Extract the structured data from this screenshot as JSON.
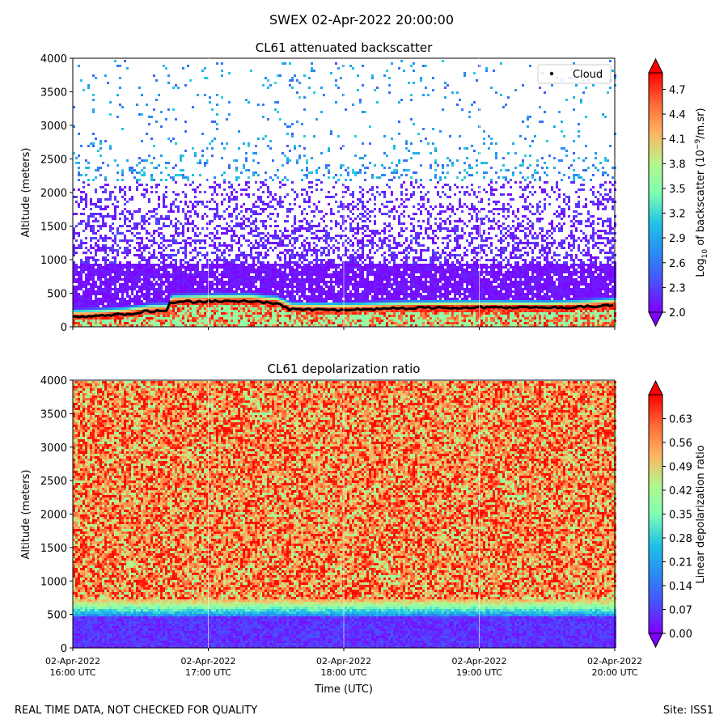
{
  "suptitle": "SWEX 02-Apr-2022 20:00:00",
  "footer": {
    "left": "REAL TIME DATA, NOT CHECKED FOR QUALITY",
    "right": "Site: ISS1"
  },
  "xaxis": {
    "label": "Time (UTC)",
    "ticks": [
      {
        "date": "02-Apr-2022",
        "time": "16:00 UTC"
      },
      {
        "date": "02-Apr-2022",
        "time": "17:00 UTC"
      },
      {
        "date": "02-Apr-2022",
        "time": "18:00 UTC"
      },
      {
        "date": "02-Apr-2022",
        "time": "19:00 UTC"
      },
      {
        "date": "02-Apr-2022",
        "time": "20:00 UTC"
      }
    ]
  },
  "chart_data": [
    {
      "type": "heatmap",
      "title": "CL61 attenuated backscatter",
      "xlabel": "",
      "ylabel": "Altitude (meters)",
      "xlim_hours": [
        16,
        20
      ],
      "ylim": [
        0,
        4000
      ],
      "yticks": [
        0,
        500,
        1000,
        1500,
        2000,
        2500,
        3000,
        3500,
        4000
      ],
      "colorbar": {
        "label": "Log10 of backscatter (10^-9/m.sr)",
        "label_parts": {
          "pre": "Log",
          "sub": "10",
          "mid": " of backscatter (10",
          "sup": "−9",
          "post": "/m.sr)"
        },
        "range": [
          2.0,
          4.9
        ],
        "ticks": [
          "2.0",
          "2.3",
          "2.6",
          "2.9",
          "3.2",
          "3.5",
          "3.8",
          "4.1",
          "4.4",
          "4.7"
        ],
        "colormap": "rainbow"
      },
      "legend": {
        "entries": [
          "Cloud"
        ],
        "location": "top-right"
      },
      "cloud_base_series": {
        "name": "Cloud",
        "x_hours": [
          16.0,
          16.2,
          16.4,
          16.55,
          16.7,
          16.72,
          17.0,
          17.3,
          17.5,
          17.6,
          18.0,
          18.5,
          19.0,
          19.5,
          19.8,
          20.0
        ],
        "y_m": [
          150,
          160,
          190,
          230,
          240,
          370,
          380,
          385,
          350,
          260,
          250,
          280,
          290,
          280,
          300,
          330
        ]
      }
    },
    {
      "type": "heatmap",
      "title": "CL61 depolarization ratio",
      "xlabel": "Time (UTC)",
      "ylabel": "Altitude (meters)",
      "xlim_hours": [
        16,
        20
      ],
      "ylim": [
        0,
        4000
      ],
      "yticks": [
        0,
        500,
        1000,
        1500,
        2000,
        2500,
        3000,
        3500,
        4000
      ],
      "colorbar": {
        "label": "Linear depolarization ratio",
        "range": [
          0.0,
          0.7
        ],
        "ticks": [
          "0.00",
          "0.07",
          "0.14",
          "0.21",
          "0.28",
          "0.35",
          "0.42",
          "0.49",
          "0.56",
          "0.63"
        ],
        "colormap": "rainbow"
      }
    }
  ]
}
